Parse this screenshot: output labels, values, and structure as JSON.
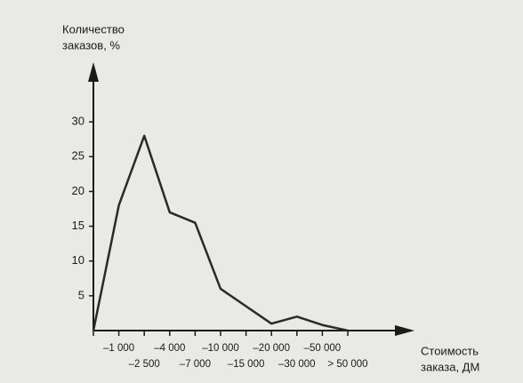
{
  "chart_data": {
    "type": "line",
    "y_label": [
      "Количество",
      "заказов, %"
    ],
    "x_label": [
      "Стоимость",
      "заказа, ДМ"
    ],
    "categories": [
      null,
      "–1 000",
      "–2 500",
      "–4 000",
      "–7 000",
      "–10 000",
      "–15 000",
      "–20 000",
      "–30 000",
      "–50 000",
      "> 50 000"
    ],
    "values": [
      0,
      18,
      28,
      17,
      15.5,
      6,
      3.5,
      1,
      2,
      0.8,
      0
    ],
    "color": "#2a2a2a",
    "ylim": [
      0,
      35
    ],
    "yticks": [
      5,
      10,
      15,
      20,
      25,
      30
    ]
  }
}
